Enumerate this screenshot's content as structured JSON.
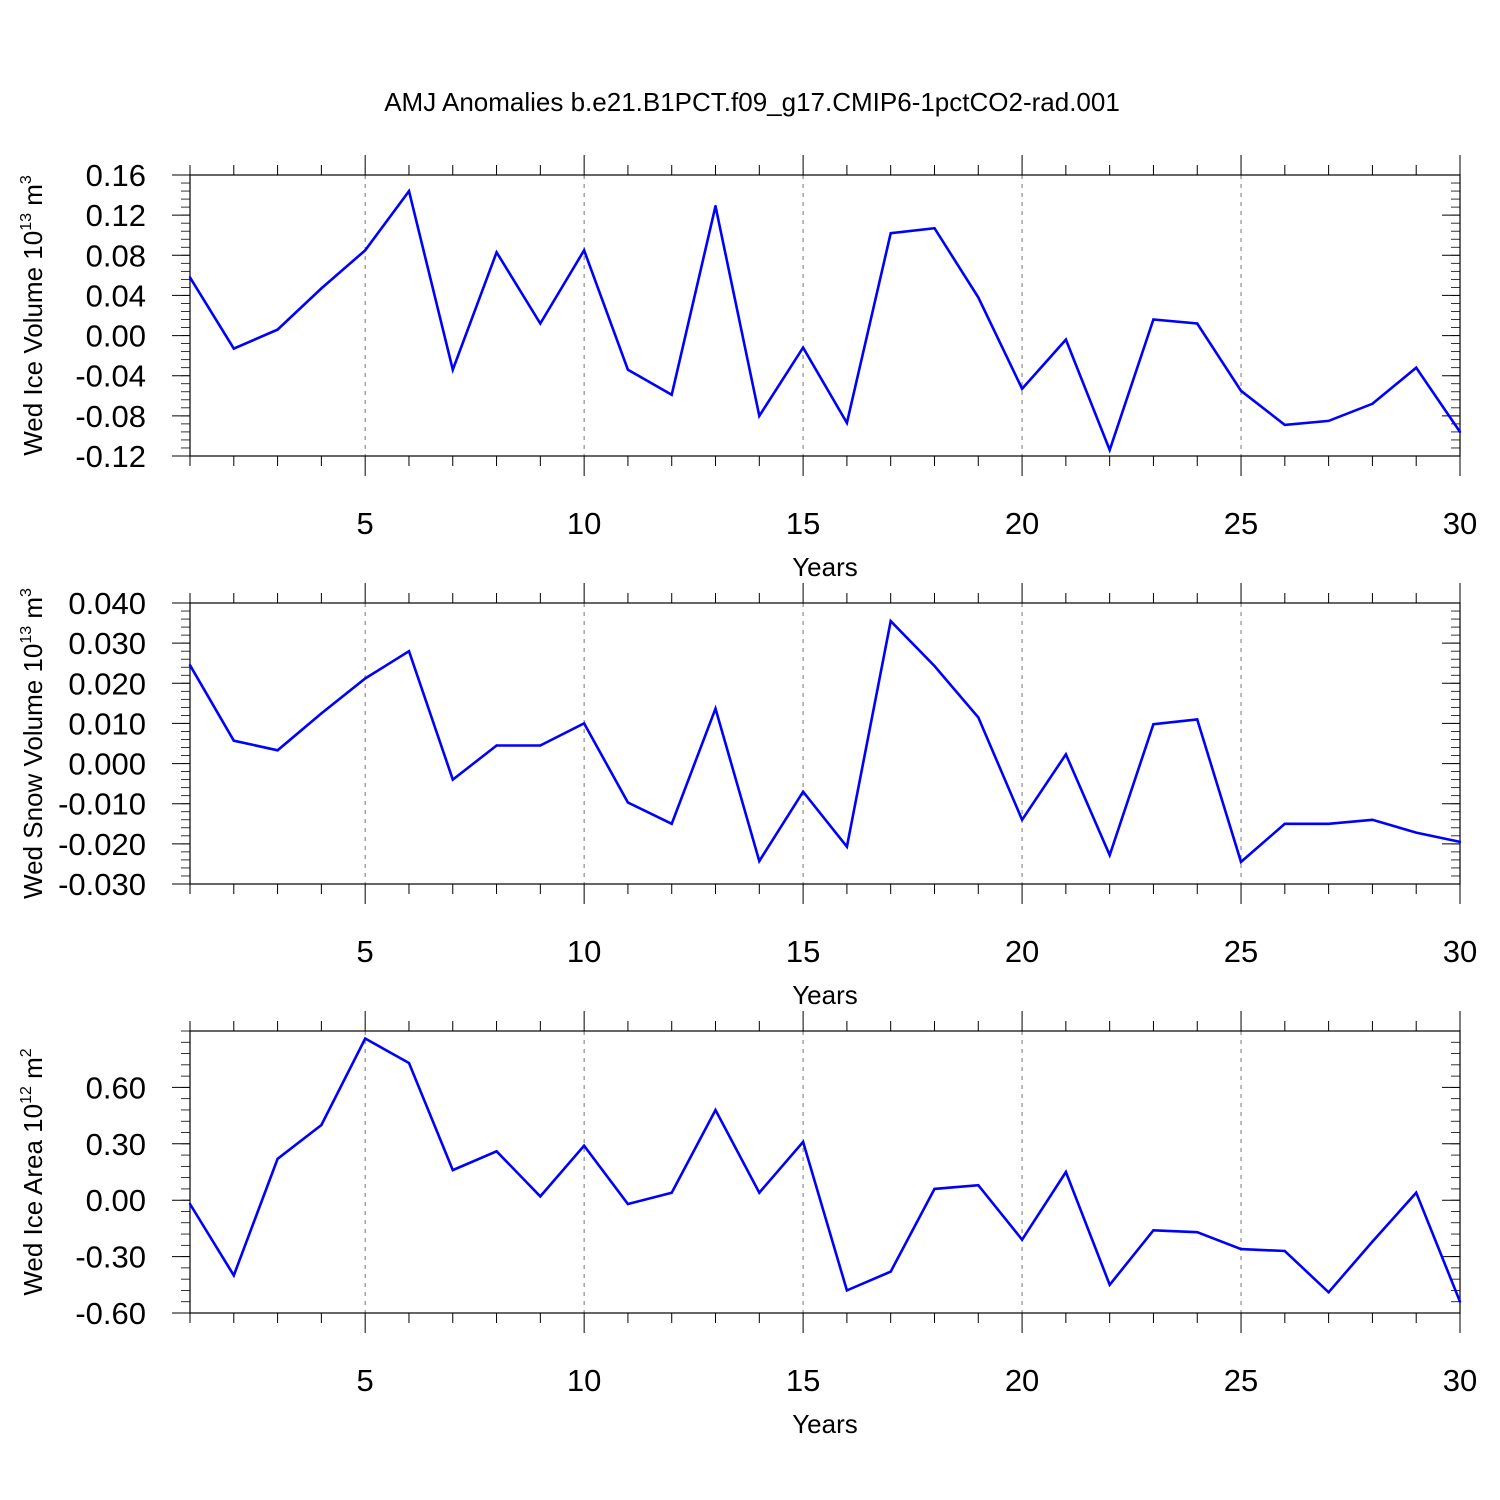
{
  "title": "AMJ Anomalies b.e21.B1PCT.f09_g17.CMIP6-1pctCO2-rad.001",
  "colors": {
    "line": "#0000ff",
    "axis": "#000000",
    "grid": "#777777"
  },
  "chart_data": [
    {
      "type": "line",
      "ylabel": {
        "main": "Wed Ice Volume 10",
        "sup1": "13",
        "mid": " m",
        "sup2": "3"
      },
      "xlabel": "Years",
      "xlim": [
        1,
        30
      ],
      "ylim": [
        -0.12,
        0.16
      ],
      "x_ticks": [
        5,
        10,
        15,
        20,
        25,
        30
      ],
      "x_tick_labels": [
        "5",
        "10",
        "15",
        "20",
        "25",
        "30"
      ],
      "y_ticks": [
        -0.12,
        -0.08,
        -0.04,
        0.0,
        0.04,
        0.08,
        0.12,
        0.16
      ],
      "y_tick_labels": [
        "-0.12",
        "-0.08",
        "-0.04",
        "0.00",
        "0.04",
        "0.08",
        "0.12",
        "0.16"
      ],
      "grid": "vertical dashed at major x ticks",
      "x": [
        1,
        2,
        3,
        4,
        5,
        6,
        7,
        8,
        9,
        10,
        11,
        12,
        13,
        14,
        15,
        16,
        17,
        18,
        19,
        20,
        21,
        22,
        23,
        24,
        25,
        26,
        27,
        28,
        29,
        30
      ],
      "values": [
        0.058,
        -0.013,
        0.006,
        0.047,
        0.085,
        0.144,
        -0.034,
        0.083,
        0.012,
        0.085,
        -0.034,
        -0.059,
        0.129,
        -0.08,
        -0.012,
        -0.087,
        0.102,
        0.107,
        0.038,
        -0.053,
        -0.004,
        -0.114,
        0.016,
        0.012,
        -0.055,
        -0.089,
        -0.085,
        -0.068,
        -0.032,
        -0.096
      ]
    },
    {
      "type": "line",
      "ylabel": {
        "main": "Wed Snow Volume 10",
        "sup1": "13",
        "mid": " m",
        "sup2": "3"
      },
      "xlabel": "Years",
      "xlim": [
        1,
        30
      ],
      "ylim": [
        -0.03,
        0.04
      ],
      "x_ticks": [
        5,
        10,
        15,
        20,
        25,
        30
      ],
      "x_tick_labels": [
        "5",
        "10",
        "15",
        "20",
        "25",
        "30"
      ],
      "y_ticks": [
        -0.03,
        -0.02,
        -0.01,
        0.0,
        0.01,
        0.02,
        0.03,
        0.04
      ],
      "y_tick_labels": [
        "-0.030",
        "-0.020",
        "-0.010",
        "0.000",
        "0.010",
        "0.020",
        "0.030",
        "0.040"
      ],
      "grid": "vertical dashed at major x ticks",
      "x": [
        1,
        2,
        3,
        4,
        5,
        6,
        7,
        8,
        9,
        10,
        11,
        12,
        13,
        14,
        15,
        16,
        17,
        18,
        19,
        20,
        21,
        22,
        23,
        24,
        25,
        26,
        27,
        28,
        29,
        30
      ],
      "values": [
        0.0245,
        0.0057,
        0.0033,
        0.0125,
        0.0212,
        0.028,
        -0.004,
        0.0045,
        0.0045,
        0.01,
        -0.0097,
        -0.015,
        0.0137,
        -0.0243,
        -0.007,
        -0.0207,
        0.0355,
        0.0243,
        0.0115,
        -0.014,
        0.0023,
        -0.0228,
        0.0098,
        0.011,
        -0.0245,
        -0.015,
        -0.015,
        -0.014,
        -0.0172,
        -0.0195
      ]
    },
    {
      "type": "line",
      "ylabel": {
        "main": "Wed Ice Area 10",
        "sup1": "12",
        "mid": " m",
        "sup2": "2"
      },
      "xlabel": "Years",
      "xlim": [
        1,
        30
      ],
      "ylim": [
        -0.6,
        0.9
      ],
      "x_ticks": [
        5,
        10,
        15,
        20,
        25,
        30
      ],
      "x_tick_labels": [
        "5",
        "10",
        "15",
        "20",
        "25",
        "30"
      ],
      "y_ticks": [
        -0.6,
        -0.3,
        0.0,
        0.3,
        0.6
      ],
      "y_tick_labels": [
        "-0.60",
        "-0.30",
        "0.00",
        "0.30",
        "0.60"
      ],
      "grid": "vertical dashed at major x ticks",
      "x": [
        1,
        2,
        3,
        4,
        5,
        6,
        7,
        8,
        9,
        10,
        11,
        12,
        13,
        14,
        15,
        16,
        17,
        18,
        19,
        20,
        21,
        22,
        23,
        24,
        25,
        26,
        27,
        28,
        29,
        30
      ],
      "values": [
        -0.02,
        -0.4,
        0.22,
        0.4,
        0.86,
        0.73,
        0.16,
        0.26,
        0.02,
        0.29,
        -0.02,
        0.04,
        0.48,
        0.04,
        0.31,
        -0.48,
        -0.38,
        0.06,
        0.08,
        -0.21,
        0.15,
        -0.45,
        -0.16,
        -0.17,
        -0.26,
        -0.27,
        -0.49,
        -0.22,
        0.04,
        -0.54
      ]
    }
  ]
}
